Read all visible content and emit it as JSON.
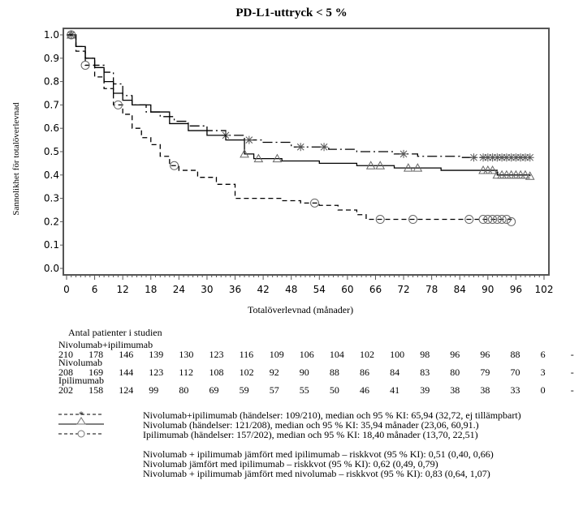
{
  "chart_data": {
    "type": "line",
    "subtype": "kaplan-meier",
    "title": "PD-L1-uttryck < 5 %",
    "xlabel": "Totalöverlevnad (månader)",
    "ylabel": "Sannolikhet för totalöverlevnad",
    "xlim": [
      0,
      102
    ],
    "ylim": [
      0,
      1.0
    ],
    "xticks": [
      "0",
      "6",
      "12",
      "18",
      "24",
      "30",
      "36",
      "42",
      "48",
      "54",
      "60",
      "66",
      "72",
      "78",
      "84",
      "90",
      "96",
      "102"
    ],
    "yticks": [
      "0.0",
      "0.1",
      "0.2",
      "0.3",
      "0.4",
      "0.5",
      "0.6",
      "0.7",
      "0.8",
      "0.9",
      "1.0"
    ],
    "series": [
      {
        "name": "Nivolumab+ipilimumab",
        "style": "dashdot",
        "marker": "star",
        "points": [
          [
            0,
            1
          ],
          [
            2,
            0.95
          ],
          [
            4,
            0.9
          ],
          [
            6,
            0.87
          ],
          [
            8,
            0.84
          ],
          [
            10,
            0.79
          ],
          [
            12,
            0.74
          ],
          [
            14,
            0.7
          ],
          [
            17,
            0.67
          ],
          [
            20,
            0.65
          ],
          [
            23,
            0.63
          ],
          [
            26,
            0.61
          ],
          [
            30,
            0.59
          ],
          [
            34,
            0.57
          ],
          [
            38,
            0.55
          ],
          [
            42,
            0.54
          ],
          [
            48,
            0.52
          ],
          [
            56,
            0.51
          ],
          [
            62,
            0.5
          ],
          [
            70,
            0.49
          ],
          [
            75,
            0.48
          ],
          [
            84,
            0.475
          ],
          [
            99,
            0.475
          ]
        ],
        "censored": [
          1,
          34,
          39,
          50,
          55,
          72,
          87,
          89,
          90,
          91,
          92,
          93,
          94,
          95,
          96,
          97,
          98,
          99
        ]
      },
      {
        "name": "Nivolumab",
        "style": "solid",
        "marker": "triangle",
        "points": [
          [
            0,
            1
          ],
          [
            2,
            0.95
          ],
          [
            4,
            0.9
          ],
          [
            6,
            0.86
          ],
          [
            8,
            0.8
          ],
          [
            10,
            0.75
          ],
          [
            12,
            0.72
          ],
          [
            14,
            0.7
          ],
          [
            18,
            0.67
          ],
          [
            22,
            0.62
          ],
          [
            26,
            0.59
          ],
          [
            30,
            0.57
          ],
          [
            34,
            0.55
          ],
          [
            38,
            0.49
          ],
          [
            40,
            0.47
          ],
          [
            46,
            0.46
          ],
          [
            54,
            0.45
          ],
          [
            62,
            0.44
          ],
          [
            70,
            0.43
          ],
          [
            80,
            0.42
          ],
          [
            89,
            0.42
          ],
          [
            92,
            0.4
          ],
          [
            99,
            0.395
          ]
        ],
        "censored": [
          1,
          38,
          41,
          45,
          65,
          67,
          73,
          75,
          89,
          90,
          91,
          92,
          93,
          94,
          95,
          96,
          97,
          98,
          99
        ]
      },
      {
        "name": "Ipilimumab",
        "style": "dashed",
        "marker": "circle",
        "points": [
          [
            0,
            1
          ],
          [
            2,
            0.93
          ],
          [
            4,
            0.87
          ],
          [
            6,
            0.82
          ],
          [
            8,
            0.77
          ],
          [
            10,
            0.7
          ],
          [
            12,
            0.66
          ],
          [
            14,
            0.6
          ],
          [
            16,
            0.56
          ],
          [
            18,
            0.53
          ],
          [
            20,
            0.48
          ],
          [
            22,
            0.44
          ],
          [
            24,
            0.42
          ],
          [
            28,
            0.39
          ],
          [
            32,
            0.36
          ],
          [
            36,
            0.3
          ],
          [
            40,
            0.3
          ],
          [
            46,
            0.29
          ],
          [
            50,
            0.28
          ],
          [
            54,
            0.27
          ],
          [
            58,
            0.25
          ],
          [
            62,
            0.23
          ],
          [
            64,
            0.21
          ],
          [
            95,
            0.2
          ]
        ],
        "censored": [
          1,
          4,
          11,
          23,
          53,
          67,
          74,
          86,
          89,
          90,
          91,
          92,
          93,
          94,
          95
        ]
      }
    ]
  },
  "risk_table": {
    "heading": "Antal patienter i studien",
    "groups": [
      {
        "name": "Nivolumab+ipilimumab",
        "values": [
          "210",
          "178",
          "146",
          "139",
          "130",
          "123",
          "116",
          "109",
          "106",
          "104",
          "102",
          "100",
          "98",
          "96",
          "96",
          "88",
          "6",
          "-"
        ]
      },
      {
        "name": "Nivolumab",
        "values": [
          "208",
          "169",
          "144",
          "123",
          "112",
          "108",
          "102",
          "92",
          "90",
          "88",
          "86",
          "84",
          "83",
          "80",
          "79",
          "70",
          "3",
          "-"
        ]
      },
      {
        "name": "Ipilimumab",
        "values": [
          "202",
          "158",
          "124",
          "99",
          "80",
          "69",
          "59",
          "57",
          "55",
          "50",
          "46",
          "41",
          "39",
          "38",
          "38",
          "33",
          "0",
          "-"
        ]
      }
    ]
  },
  "legend": [
    "Nivolumab+ipilimumab (händelser: 109/210), median och 95 % KI: 65,94 (32,72, ej tillämpbart)",
    "Nivolumab (händelser: 121/208), median och 95 % KI: 35,94 månader (23,06, 60,91.)",
    "Ipilimumab (händelser: 157/202), median och 95 % KI: 18,40 månader (13,70, 22,51)"
  ],
  "hazard_ratios": [
    "Nivolumab + ipilimumab jämfört med ipilimumab – riskkvot (95 % KI): 0,51 (0,40, 0,66)",
    "Nivolumab jämfört med ipilimumab – riskkvot (95 % KI): 0,62 (0,49, 0,79)",
    "Nivolumab + ipilimumab jämfört med nivolumab – riskkvot (95 % KI): 0,83 (0,64, 1,07)"
  ]
}
